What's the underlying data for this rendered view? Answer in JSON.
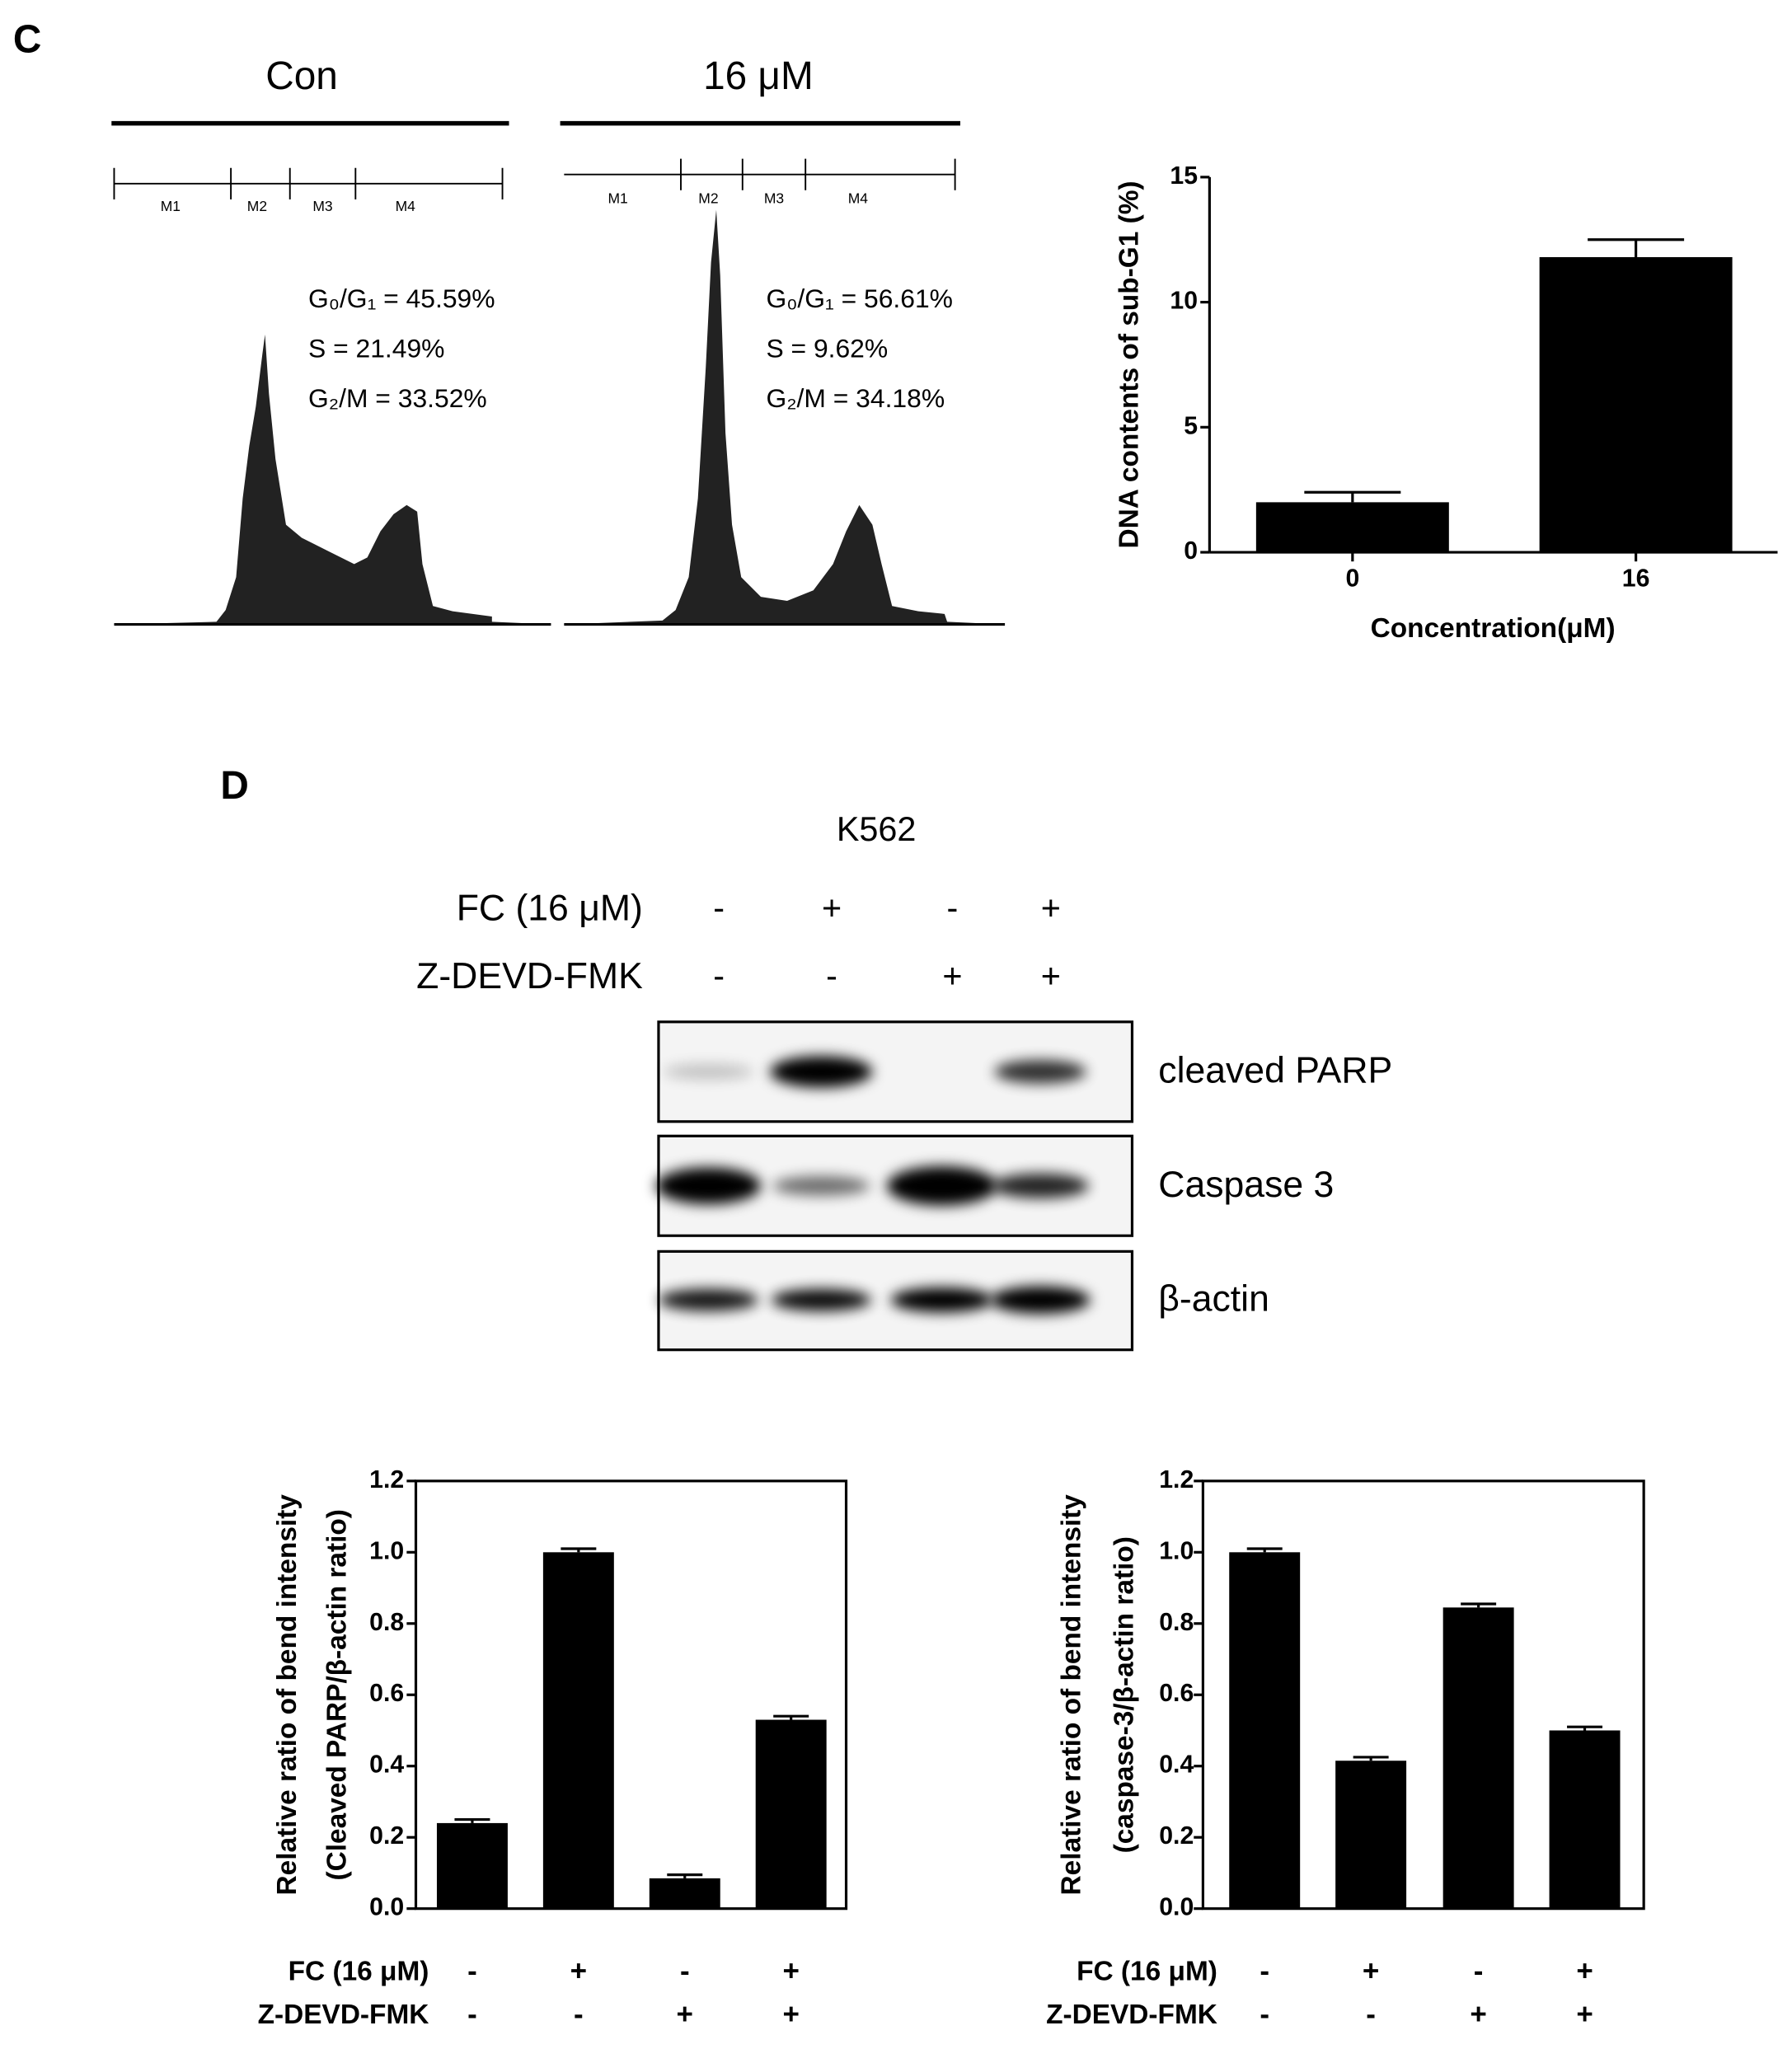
{
  "panels": [
    "C",
    "D"
  ],
  "flow": [
    {
      "title": "Con",
      "gates": [
        "M1",
        "M2",
        "M3",
        "M4"
      ],
      "stats": [
        "G₀/G₁ = 45.59%",
        "S = 21.49%",
        "G₂/M = 33.52%"
      ]
    },
    {
      "title": "16 μM",
      "gates": [
        "M1",
        "M2",
        "M3",
        "M4"
      ],
      "stats": [
        "G₀/G₁ = 56.61%",
        "S = 9.62%",
        "G₂/M = 34.18%"
      ]
    }
  ],
  "blot": {
    "cell_line": "K562",
    "conditions": [
      {
        "label": "FC (16 μM)",
        "lanes": [
          "-",
          "+",
          "-",
          "+"
        ]
      },
      {
        "label": "Z-DEVD-FMK",
        "lanes": [
          "-",
          "-",
          "+",
          "+"
        ]
      }
    ],
    "bands": [
      "cleaved PARP",
      "Caspase 3",
      "β-actin"
    ]
  },
  "chart_data": [
    {
      "type": "bar",
      "ylabel": [
        "DNA contents of sub-G1 (%)"
      ],
      "xlabel": "Concentration(μM)",
      "categories": [
        "0",
        "16"
      ],
      "values": [
        2.0,
        11.8
      ],
      "errors": [
        0.4,
        0.7
      ],
      "color": "#000000",
      "ylim": [
        0,
        15
      ],
      "yticks": [
        0,
        5,
        10,
        15
      ],
      "frame": false
    },
    {
      "type": "bar",
      "ylabel": [
        "Relative ratio of bend intensity",
        "(Cleaved PARP/β-actin ratio)"
      ],
      "category_rows": [
        {
          "label": "FC (16 μM)",
          "values": [
            "-",
            "+",
            "-",
            "+"
          ]
        },
        {
          "label": "Z-DEVD-FMK",
          "values": [
            "-",
            "-",
            "+",
            "+"
          ]
        }
      ],
      "values": [
        0.24,
        1.0,
        0.085,
        0.53
      ],
      "errors": [
        0.01,
        0.01,
        0.01,
        0.01
      ],
      "color": "#000000",
      "ylim": [
        0,
        1.2
      ],
      "yticks": [
        {
          "value": 0,
          "label": "0.0"
        },
        0.2,
        0.4,
        0.6,
        0.8,
        {
          "value": 1,
          "label": "1.0"
        },
        1.2
      ],
      "frame": true
    },
    {
      "type": "bar",
      "ylabel": [
        "Relative ratio of bend intensity",
        "(caspase-3/β-actin ratio)"
      ],
      "category_rows": [
        {
          "label": "FC (16 μM)",
          "values": [
            "-",
            "+",
            "-",
            "+"
          ]
        },
        {
          "label": "Z-DEVD-FMK",
          "values": [
            "-",
            "-",
            "+",
            "+"
          ]
        }
      ],
      "values": [
        1.0,
        0.415,
        0.845,
        0.5
      ],
      "errors": [
        0.01,
        0.01,
        0.01,
        0.01
      ],
      "color": "#000000",
      "ylim": [
        0,
        1.2
      ],
      "yticks": [
        {
          "value": 0,
          "label": "0.0"
        },
        0.2,
        0.4,
        0.6,
        0.8,
        {
          "value": 1,
          "label": "1.0"
        },
        1.2
      ],
      "frame": true
    }
  ]
}
